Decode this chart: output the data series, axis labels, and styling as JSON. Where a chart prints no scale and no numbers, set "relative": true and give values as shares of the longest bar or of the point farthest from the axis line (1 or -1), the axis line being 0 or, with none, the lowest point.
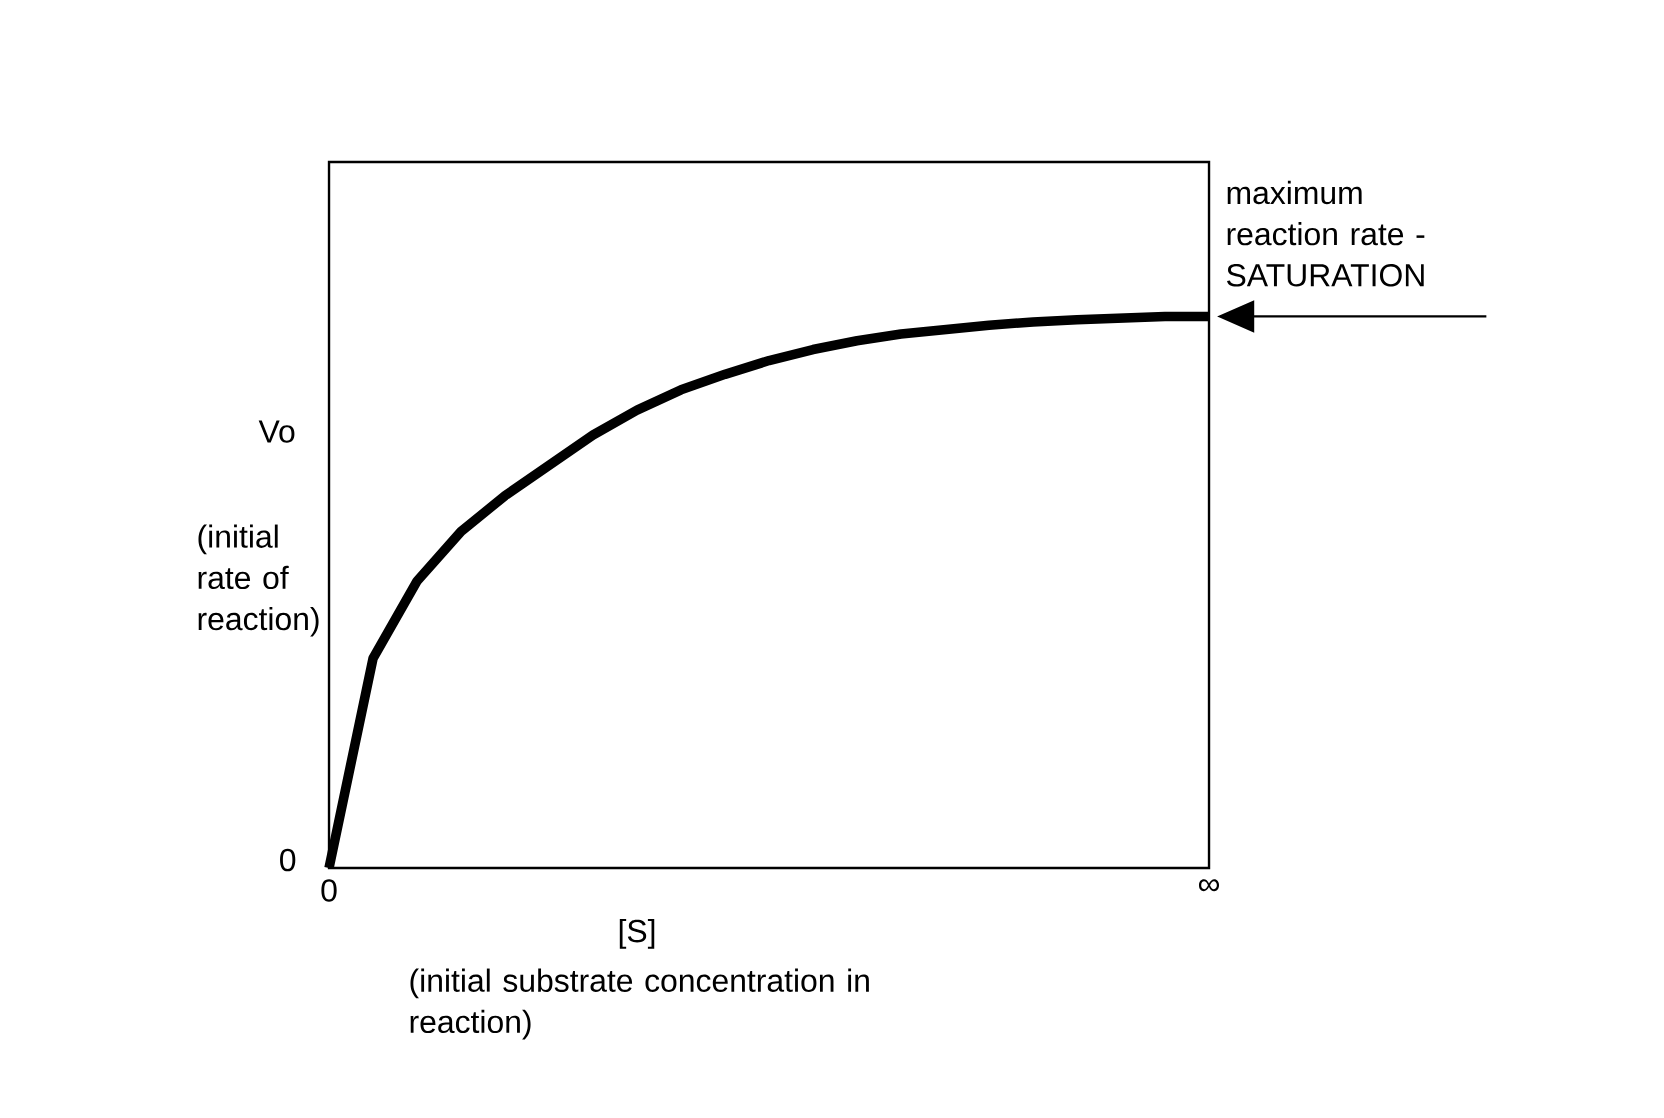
{
  "chart_data": {
    "type": "line",
    "relative": true,
    "color": "#000000",
    "ylabel": "Vo",
    "xlabel": "[S]",
    "categories": [
      "0",
      null,
      null,
      null,
      null,
      null,
      null,
      null,
      null,
      null,
      null,
      null,
      null,
      null,
      null,
      null,
      null,
      null,
      null,
      null,
      "∞"
    ],
    "values": [
      0,
      0.38,
      0.52,
      0.61,
      0.675,
      0.73,
      0.785,
      0.83,
      0.867,
      0.895,
      0.92,
      0.94,
      0.956,
      0.968,
      0.976,
      0.984,
      0.99,
      0.994,
      0.997,
      1,
      1
    ],
    "annotations": [
      "0",
      "maximum reaction rate - SATURATION",
      "(initial rate of reaction)",
      "(initial substrate concentration in reaction)"
    ],
    "marker": "none",
    "line_style": "solid"
  }
}
